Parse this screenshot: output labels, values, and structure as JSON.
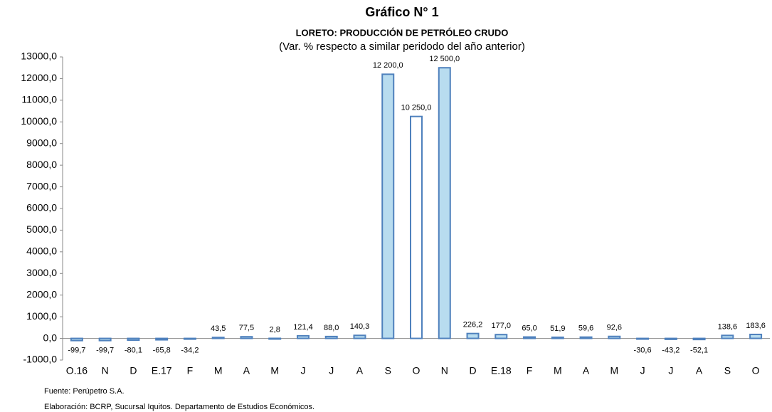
{
  "chart_data": {
    "type": "bar",
    "title": "Gráfico N° 1",
    "subtitle": "LORETO: PRODUCCIÓN DE PETRÓLEO CRUDO",
    "note": "(Var. % respecto a similar peridodo del año anterior)",
    "categories": [
      "O.16",
      "N",
      "D",
      "E.17",
      "F",
      "M",
      "A",
      "M",
      "J",
      "J",
      "A",
      "S",
      "O",
      "N",
      "D",
      "E.18",
      "F",
      "M",
      "A",
      "M",
      "J",
      "J",
      "A",
      "S",
      "O"
    ],
    "values": [
      -99.7,
      -99.7,
      -80.1,
      -65.8,
      -34.2,
      43.5,
      77.5,
      2.8,
      121.4,
      88.0,
      140.3,
      12200,
      10250,
      12500,
      226.2,
      177.0,
      65.0,
      51.9,
      59.6,
      92.6,
      -30.6,
      -43.2,
      -52.1,
      138.6,
      183.6
    ],
    "value_labels": [
      "-99,7",
      "-99,7",
      "-80,1",
      "-65,8",
      "-34,2",
      "43,5",
      "77,5",
      "2,8",
      "121,4",
      "88,0",
      "140,3",
      "12 200,0",
      "10 250,0",
      "12 500,0",
      "226,2",
      "177,0",
      "65,0",
      "51,9",
      "59,6",
      "92,6",
      "-30,6",
      "-43,2",
      "-52,1",
      "138,6",
      "183,6"
    ],
    "colors": [
      "#b8dcef",
      "#b8dcef",
      "#b8dcef",
      "#b8dcef",
      "#b8dcef",
      "#b8dcef",
      "#b8dcef",
      "#b8dcef",
      "#b8dcef",
      "#b8dcef",
      "#b8dcef",
      "#b8dcef",
      "#ffffff",
      "#b8dcef",
      "#b8dcef",
      "#b8dcef",
      "#b8dcef",
      "#b8dcef",
      "#b8dcef",
      "#b8dcef",
      "#b8dcef",
      "#b8dcef",
      "#b8dcef",
      "#b8dcef",
      "#b8dcef"
    ],
    "edge_color": "#4f81bd",
    "ylim": [
      -1000,
      13000
    ],
    "yticks": [
      {
        "value": -1000,
        "label": "-1000,0"
      },
      {
        "value": 0,
        "label": "0,0"
      },
      {
        "value": 1000,
        "label": "1000,0"
      },
      {
        "value": 2000,
        "label": "2000,0"
      },
      {
        "value": 3000,
        "label": "3000,0"
      },
      {
        "value": 4000,
        "label": "4000,0"
      },
      {
        "value": 5000,
        "label": "5000,0"
      },
      {
        "value": 6000,
        "label": "6000,0"
      },
      {
        "value": 7000,
        "label": "7000,0"
      },
      {
        "value": 8000,
        "label": "8000,0"
      },
      {
        "value": 9000,
        "label": "9000,0"
      },
      {
        "value": 10000,
        "label": "10000,0"
      },
      {
        "value": 11000,
        "label": "11000,0"
      },
      {
        "value": 12000,
        "label": "12000,0"
      },
      {
        "value": 13000,
        "label": "13000,0"
      }
    ],
    "source": "Fuente: Perúpetro S.A.",
    "credit": "Elaboración: BCRP, Sucursal Iquitos. Departamento de Estudios Económicos."
  }
}
